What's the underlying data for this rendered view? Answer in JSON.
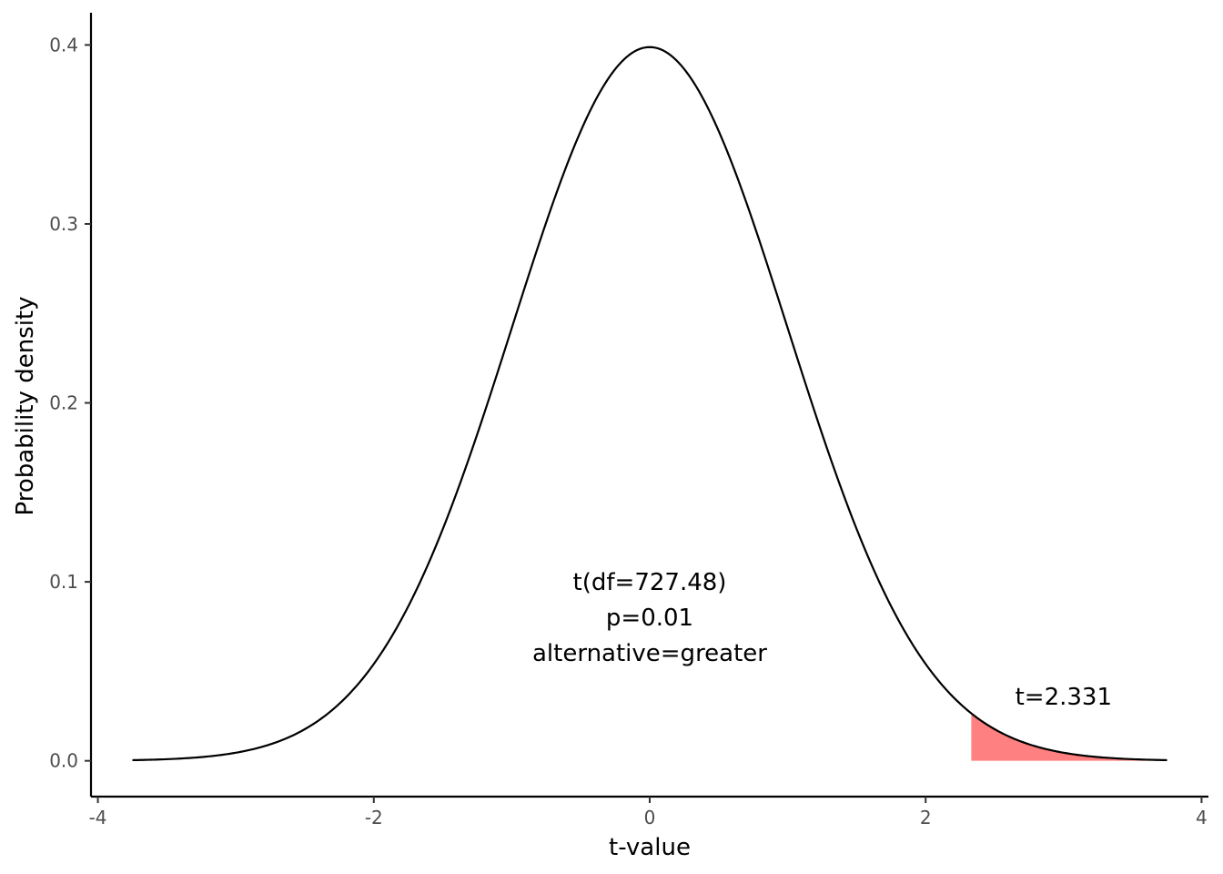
{
  "chart_data": {
    "type": "line",
    "xlabel": "t-value",
    "ylabel": "Probability density",
    "xlim": [
      -4.05,
      4.05
    ],
    "ylim": [
      -0.02,
      0.418
    ],
    "x_ticks": [
      -4,
      -2,
      0,
      2,
      4
    ],
    "x_tick_labels": [
      "-4",
      "-2",
      "0",
      "2",
      "4"
    ],
    "y_ticks": [
      0.0,
      0.1,
      0.2,
      0.3,
      0.4
    ],
    "y_tick_labels": [
      "0.0",
      "0.1",
      "0.2",
      "0.3",
      "0.4"
    ],
    "grid": false,
    "series": [
      {
        "kind": "density-curve",
        "distribution": "Student t",
        "df": 727.48,
        "x_range": [
          -3.75,
          3.75
        ],
        "color": "#000000"
      },
      {
        "kind": "shaded-tail",
        "x_range": [
          2.331,
          3.75
        ],
        "color": "#ff8080"
      }
    ],
    "annotations": [
      {
        "label": "stats",
        "x": 0,
        "y": 0.1,
        "lines": [
          "t(df=727.48)",
          "p=0.01",
          "alternative=greater"
        ]
      },
      {
        "label": "t-stat",
        "x": 3.0,
        "y": 0.036,
        "text": "t=2.331"
      }
    ]
  }
}
